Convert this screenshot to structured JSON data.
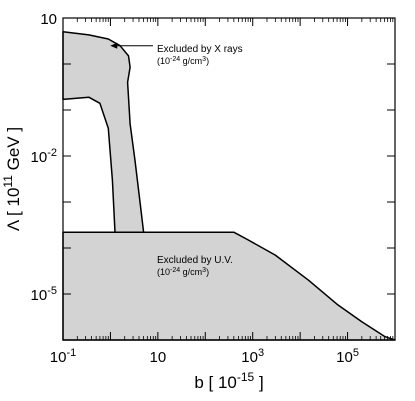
{
  "chart_data": {
    "type": "area",
    "title": "",
    "xlabel": {
      "main": "b [ 10",
      "sup": "-15",
      "after": " ]"
    },
    "ylabel": {
      "main": "Λ [ 10",
      "sup": "11",
      "after": " GeV ]"
    },
    "x_scale": "log",
    "y_scale": "log",
    "xlim": [
      0.1,
      1000000
    ],
    "ylim": [
      1e-06,
      10
    ],
    "x_ticks": [
      {
        "value": 0.1,
        "base": "10",
        "exp": "-1"
      },
      {
        "value": 10,
        "base": "10",
        "exp": ""
      },
      {
        "value": 1000,
        "base": "10",
        "exp": "3"
      },
      {
        "value": 100000,
        "base": "10",
        "exp": "5"
      }
    ],
    "y_ticks": [
      {
        "value": 10,
        "base": "10",
        "exp": ""
      },
      {
        "value": 0.01,
        "base": "10",
        "exp": "-2"
      },
      {
        "value": 1e-05,
        "base": "10",
        "exp": "-5"
      }
    ],
    "grid": false,
    "fill_color": "#d3d3d3",
    "line_color": "#000000",
    "regions": [
      {
        "label_line1": "Excluded by X rays",
        "label_line2": {
          "base": "(10",
          "sup": "-24",
          "after": " g/cm",
          "sup2": "3",
          "close": ")"
        },
        "boundary": [
          [
            0.1,
            5.0
          ],
          [
            0.35,
            4.3
          ],
          [
            0.9,
            3.5
          ],
          [
            1.6,
            2.5
          ],
          [
            2.4,
            1.5
          ],
          [
            2.6,
            0.85
          ],
          [
            2.3,
            0.4
          ],
          [
            2.6,
            0.05
          ],
          [
            3.3,
            0.008
          ],
          [
            4.2,
            0.001
          ],
          [
            5.0,
            0.00022
          ],
          [
            1.25,
            0.00022
          ],
          [
            1.1,
            0.003
          ],
          [
            0.9,
            0.04
          ],
          [
            0.6,
            0.14
          ],
          [
            0.35,
            0.19
          ],
          [
            0.1,
            0.17
          ]
        ]
      },
      {
        "label_line1": "Excluded by U.V.",
        "label_line2": {
          "base": "(10",
          "sup": "-24",
          "after": " g/cm",
          "sup2": "3",
          "close": ")"
        },
        "boundary": [
          [
            0.1,
            0.00022
          ],
          [
            400,
            0.00022
          ],
          [
            800,
            0.00015
          ],
          [
            3000,
            7e-05
          ],
          [
            15000,
            2e-05
          ],
          [
            60000,
            6e-06
          ],
          [
            200000,
            2.5e-06
          ],
          [
            600000,
            1.2e-06
          ],
          [
            1000000,
            1e-06
          ],
          [
            0.1,
            1e-06
          ]
        ]
      }
    ],
    "annotation_arrow": {
      "from": [
        3.0,
        2.5
      ],
      "to": [
        0.9,
        2.5
      ]
    }
  }
}
